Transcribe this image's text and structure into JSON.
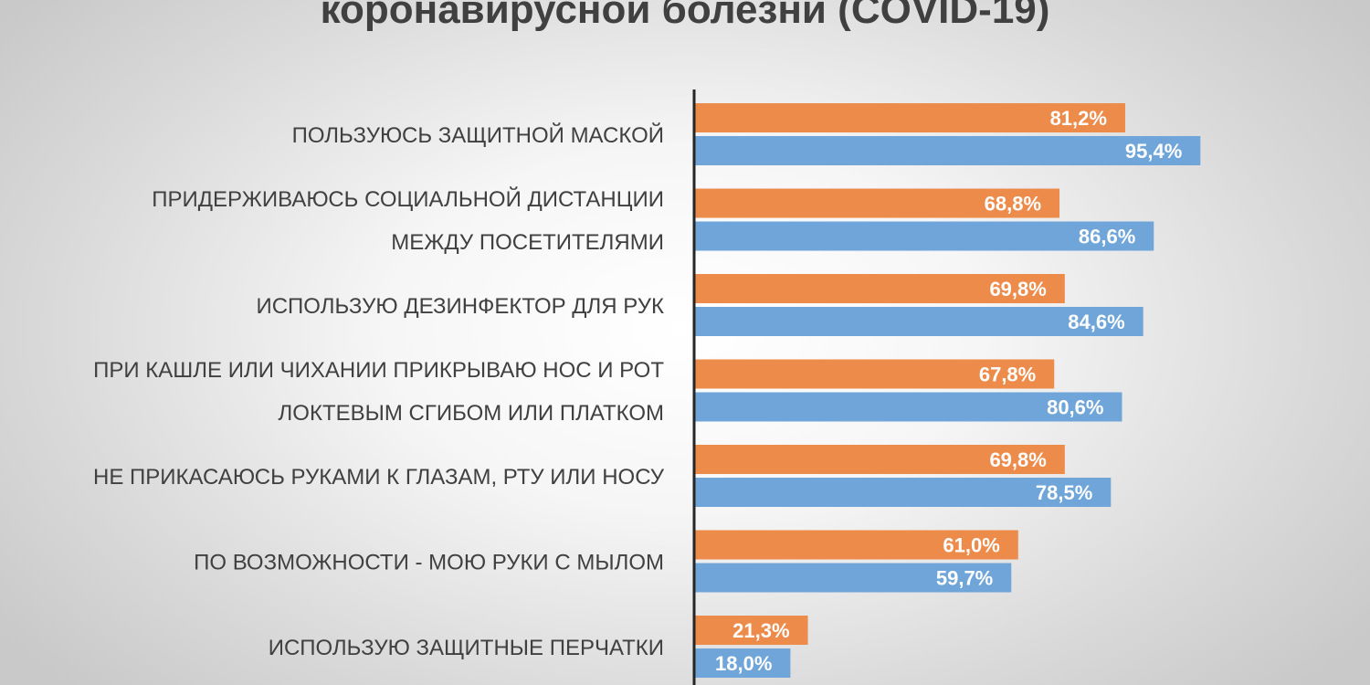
{
  "chart_data": {
    "type": "bar",
    "orientation": "horizontal",
    "title": "коронавирусной болезни (COVID-19)",
    "categories": [
      [
        "ПОЛЬЗУЮСЬ ЗАЩИТНОЙ МАСКОЙ"
      ],
      [
        "ПРИДЕРЖИВАЮСЬ СОЦИАЛЬНОЙ ДИСТАНЦИИ",
        "МЕЖДУ ПОСЕТИТЕЛЯМИ"
      ],
      [
        "ИСПОЛЬЗУЮ ДЕЗИНФЕКТОР ДЛЯ РУК"
      ],
      [
        "ПРИ КАШЛЕ ИЛИ ЧИХАНИИ ПРИКРЫВАЮ НОС И РОТ",
        "ЛОКТЕВЫМ СГИБОМ ИЛИ ПЛАТКОМ"
      ],
      [
        "НЕ ПРИКАСАЮСЬ РУКАМИ К ГЛАЗАМ, РТУ ИЛИ НОСУ"
      ],
      [
        "ПО ВОЗМОЖНОСТИ - МОЮ РУКИ С МЫЛОМ"
      ],
      [
        "ИСПОЛЬЗУЮ ЗАЩИТНЫЕ ПЕРЧАТКИ"
      ]
    ],
    "series": [
      {
        "color": "#ED8B4B",
        "values": [
          81.2,
          68.8,
          69.8,
          67.8,
          69.8,
          61.0,
          21.3
        ],
        "labels": [
          "81,2%",
          "68,8%",
          "69,8%",
          "67,8%",
          "69,8%",
          "61,0%",
          "21,3%"
        ]
      },
      {
        "color": "#6FA5D9",
        "values": [
          95.4,
          86.6,
          84.6,
          80.6,
          78.5,
          59.7,
          18.0
        ],
        "labels": [
          "95,4%",
          "86,6%",
          "84,6%",
          "80,6%",
          "78,5%",
          "59,7%",
          "18,0%"
        ]
      }
    ],
    "xlim": [
      0,
      100
    ],
    "grid": false,
    "legend": "none",
    "axis_color": "#262626"
  }
}
